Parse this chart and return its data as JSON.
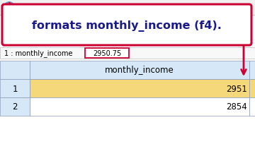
{
  "title_text": "formats monthly_income (f4).",
  "title_color": "#1a1a8c",
  "title_fontsize": 11.5,
  "bg_color": "#ffffff",
  "toolbar_color": "#f0f0f0",
  "spss_bg": "#6699cc",
  "callout_bg": "#ffffff",
  "callout_border": "#cc0033",
  "row_label_text": "1 : monthly_income",
  "cell_value_text": "2950.75",
  "cell_border": "#cc0033",
  "header_bg": "#d6e8f7",
  "col_header_text": "monthly_income",
  "col_header_color": "#000000",
  "row1_num": "1",
  "row1_val": "2951",
  "row1_bg": "#f5d87a",
  "row2_num": "2",
  "row2_val": "2854",
  "row2_bg": "#ddeeff",
  "row_num_bg": "#d6e8f7",
  "arrow_color": "#cc0033",
  "grid_color": "#8899bb",
  "statusbar_bg": "#f8f8f8",
  "fig_bg": "#f0f0f0",
  "fig_width": 3.6,
  "fig_height": 2.05,
  "dpi": 100
}
